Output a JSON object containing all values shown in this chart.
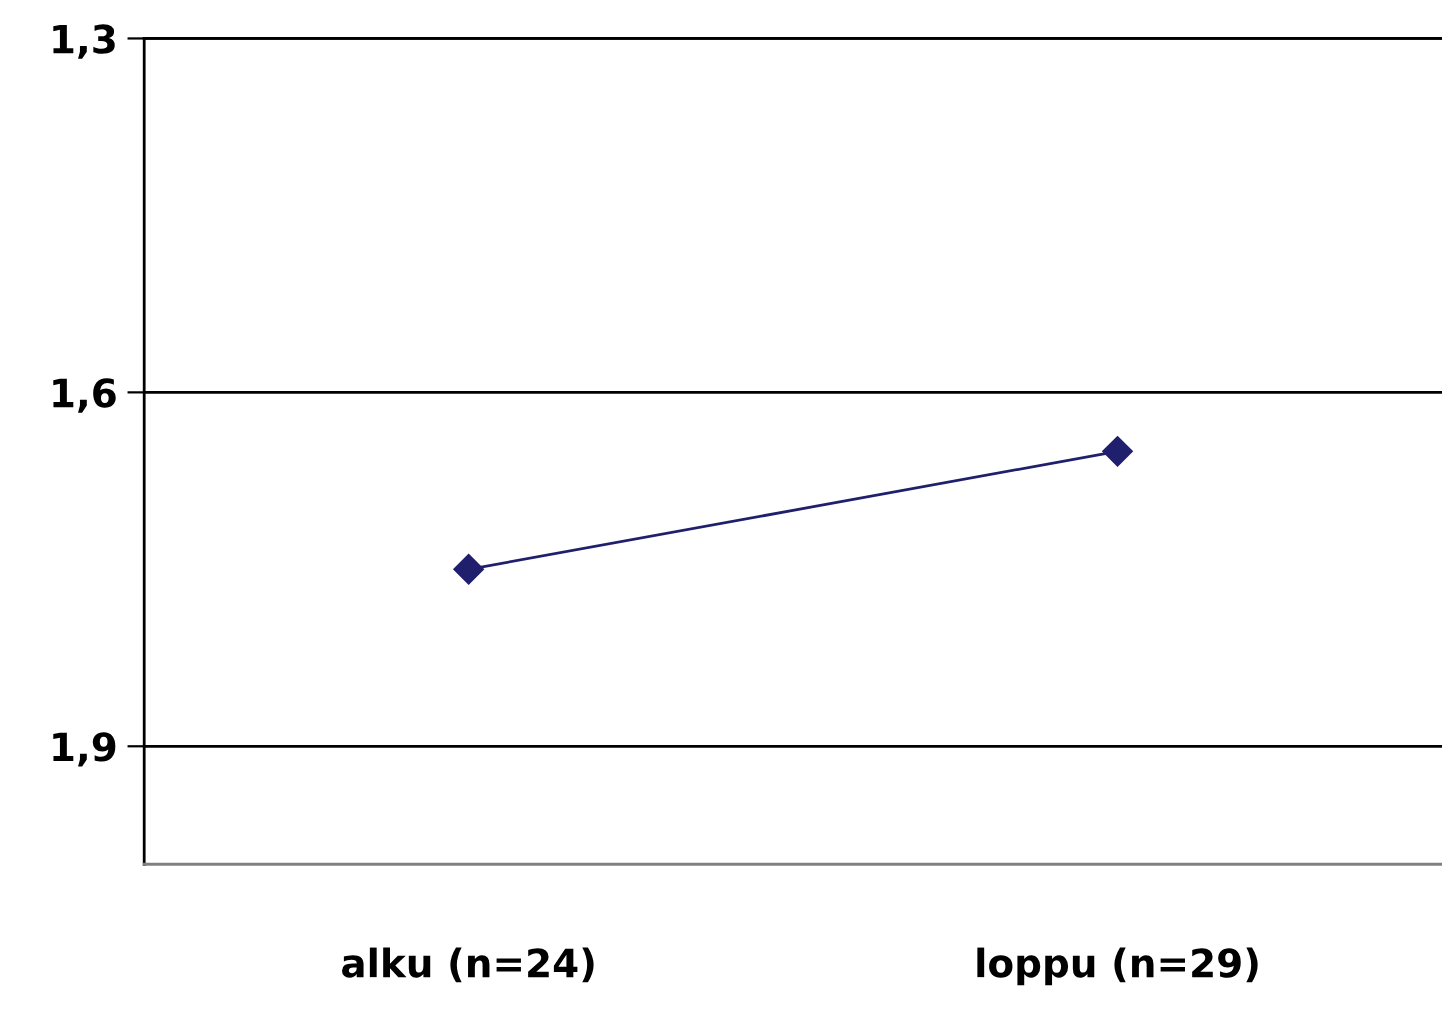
{
  "chart_data": {
    "type": "line",
    "categories": [
      "alku (n=24)",
      "loppu (n=29)"
    ],
    "series": [
      {
        "color": "#1f1f6e",
        "values": [
          1.75,
          1.65
        ]
      }
    ],
    "ylim": [
      2.0,
      1.3
    ],
    "yticks": [
      {
        "value": 1.3,
        "label": "1,3"
      },
      {
        "value": 1.6,
        "label": "1,6"
      },
      {
        "value": 1.9,
        "label": "1,9"
      }
    ],
    "grid": "y",
    "marker": "diamond",
    "line_style": "solid",
    "legend": false
  }
}
